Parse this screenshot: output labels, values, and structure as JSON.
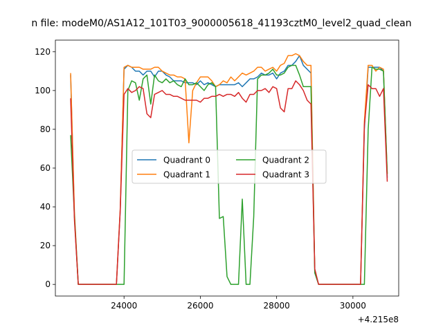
{
  "chart_data": {
    "type": "line",
    "title": "n file: modeM0/AS1A12_101T03_9000005618_41193cztM0_level2_quad_clean",
    "xlabel": "",
    "ylabel": "",
    "x_offset_label": "+4.215e8",
    "xlim": [
      22200,
      31200
    ],
    "ylim": [
      -6,
      126
    ],
    "xticks": [
      24000,
      26000,
      28000,
      30000
    ],
    "xtick_labels": [
      "24000",
      "26000",
      "28000",
      "30000"
    ],
    "yticks": [
      0,
      20,
      40,
      60,
      80,
      100,
      120
    ],
    "ytick_labels": [
      "0",
      "20",
      "40",
      "60",
      "80",
      "100",
      "120"
    ],
    "grid": false,
    "legend": {
      "placement": "center-left",
      "columns": 2
    },
    "x": [
      22600,
      22700,
      22800,
      22900,
      23000,
      23100,
      23200,
      23300,
      23400,
      23500,
      23600,
      23700,
      23800,
      23900,
      24000,
      24100,
      24200,
      24300,
      24400,
      24500,
      24600,
      24700,
      24800,
      24900,
      25000,
      25100,
      25200,
      25300,
      25400,
      25500,
      25600,
      25700,
      25800,
      25900,
      26000,
      26100,
      26200,
      26300,
      26400,
      26500,
      26600,
      26700,
      26800,
      26900,
      27000,
      27100,
      27200,
      27300,
      27400,
      27500,
      27600,
      27700,
      27800,
      27900,
      28000,
      28100,
      28200,
      28300,
      28400,
      28500,
      28600,
      28700,
      28800,
      28900,
      29000,
      29100,
      29200,
      29300,
      29400,
      29500,
      29600,
      29700,
      29800,
      29900,
      30000,
      30100,
      30200,
      30300,
      30400,
      30500,
      30600,
      30700,
      30800,
      30900
    ],
    "series": [
      {
        "name": "Quadrant 0",
        "color": "#1f77b4",
        "values": [
          108,
          35,
          0,
          0,
          0,
          0,
          0,
          0,
          0,
          0,
          0,
          0,
          0,
          38,
          111,
          113,
          112,
          110,
          110,
          108,
          110,
          110,
          107,
          110,
          110,
          108,
          107,
          105,
          105,
          105,
          104,
          104,
          104,
          103,
          105,
          103,
          104,
          103,
          102,
          103,
          103,
          103,
          103,
          103,
          104,
          102,
          104,
          106,
          106,
          107,
          109,
          108,
          108,
          109,
          106,
          109,
          110,
          113,
          113,
          115,
          118,
          113,
          111,
          109,
          6,
          0,
          0,
          0,
          0,
          0,
          0,
          0,
          0,
          0,
          0,
          0,
          0,
          80,
          112,
          112,
          112,
          112,
          110,
          55
        ]
      },
      {
        "name": "Quadrant 1",
        "color": "#ff7f0e",
        "values": [
          109,
          37,
          0,
          0,
          0,
          0,
          0,
          0,
          0,
          0,
          0,
          0,
          0,
          39,
          112,
          113,
          112,
          112,
          112,
          111,
          111,
          111,
          112,
          112,
          110,
          109,
          108,
          108,
          107,
          107,
          106,
          73,
          100,
          104,
          107,
          107,
          107,
          105,
          102,
          103,
          105,
          104,
          107,
          105,
          107,
          109,
          108,
          109,
          110,
          112,
          112,
          110,
          111,
          112,
          110,
          113,
          114,
          118,
          118,
          119,
          118,
          115,
          113,
          113,
          7,
          0,
          0,
          0,
          0,
          0,
          0,
          0,
          0,
          0,
          0,
          0,
          0,
          84,
          113,
          113,
          110,
          112,
          111,
          57
        ]
      },
      {
        "name": "Quadrant 2",
        "color": "#2ca02c",
        "values": [
          77,
          35,
          0,
          0,
          0,
          0,
          0,
          0,
          0,
          0,
          0,
          0,
          0,
          0,
          0,
          100,
          105,
          104,
          95,
          106,
          108,
          93,
          108,
          105,
          104,
          106,
          104,
          105,
          103,
          102,
          106,
          103,
          103,
          104,
          102,
          100,
          103,
          104,
          102,
          34,
          35,
          4,
          0,
          0,
          0,
          44,
          0,
          0,
          35,
          106,
          108,
          108,
          109,
          111,
          108,
          108,
          109,
          112,
          113,
          113,
          108,
          102,
          102,
          102,
          6,
          0,
          0,
          0,
          0,
          0,
          0,
          0,
          0,
          0,
          0,
          0,
          0,
          0,
          80,
          112,
          111,
          111,
          110,
          57
        ]
      },
      {
        "name": "Quadrant 3",
        "color": "#d62728",
        "values": [
          96,
          33,
          0,
          0,
          0,
          0,
          0,
          0,
          0,
          0,
          0,
          0,
          0,
          38,
          98,
          101,
          99,
          100,
          102,
          101,
          88,
          86,
          98,
          99,
          100,
          98,
          98,
          97,
          97,
          96,
          95,
          95,
          95,
          95,
          94,
          96,
          96,
          97,
          97,
          98,
          97,
          98,
          98,
          97,
          99,
          96,
          94,
          98,
          98,
          100,
          100,
          101,
          99,
          102,
          101,
          91,
          89,
          101,
          101,
          105,
          103,
          100,
          95,
          93,
          8,
          0,
          0,
          0,
          0,
          0,
          0,
          0,
          0,
          0,
          0,
          0,
          0,
          82,
          103,
          101,
          101,
          97,
          101,
          53
        ]
      }
    ]
  }
}
